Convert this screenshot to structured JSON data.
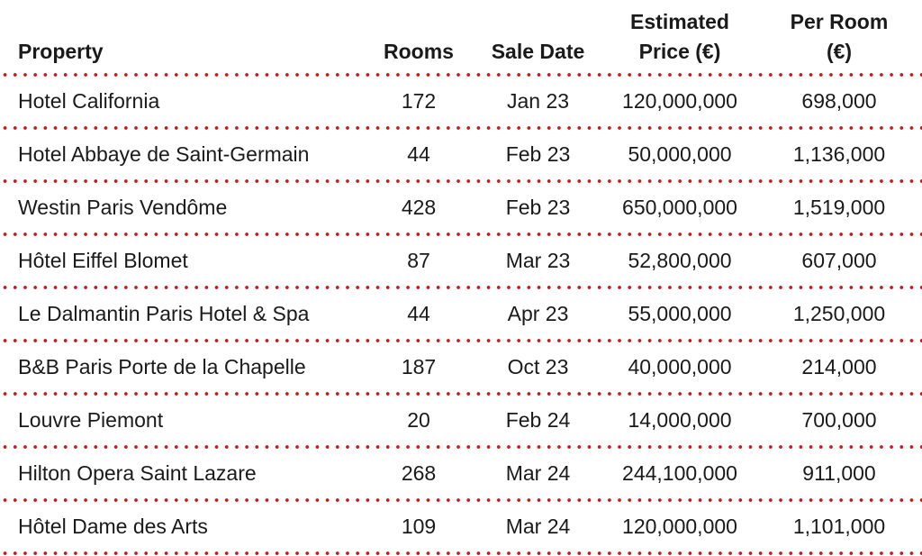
{
  "table": {
    "headers": [
      {
        "line1": "",
        "line2": "Property"
      },
      {
        "line1": "",
        "line2": "Rooms"
      },
      {
        "line1": "",
        "line2": "Sale Date"
      },
      {
        "line1": "Estimated",
        "line2": "Price (€)"
      },
      {
        "line1": "Per Room",
        "line2": "(€)"
      }
    ],
    "rows": [
      {
        "property": "Hotel California",
        "rooms": "172",
        "sale_date": "Jan 23",
        "price": "120,000,000",
        "per_room": "698,000"
      },
      {
        "property": "Hotel Abbaye de Saint-Germain",
        "rooms": "44",
        "sale_date": "Feb 23",
        "price": "50,000,000",
        "per_room": "1,136,000"
      },
      {
        "property": "Westin Paris Vendôme",
        "rooms": "428",
        "sale_date": "Feb 23",
        "price": "650,000,000",
        "per_room": "1,519,000"
      },
      {
        "property": "Hôtel Eiffel Blomet",
        "rooms": "87",
        "sale_date": "Mar 23",
        "price": "52,800,000",
        "per_room": "607,000"
      },
      {
        "property": "Le Dalmantin Paris Hotel & Spa",
        "rooms": "44",
        "sale_date": "Apr 23",
        "price": "55,000,000",
        "per_room": "1,250,000"
      },
      {
        "property": "B&B Paris Porte de la Chapelle",
        "rooms": "187",
        "sale_date": "Oct 23",
        "price": "40,000,000",
        "per_room": "214,000"
      },
      {
        "property": "Louvre Piemont",
        "rooms": "20",
        "sale_date": "Feb 24",
        "price": "14,000,000",
        "per_room": "700,000"
      },
      {
        "property": "Hilton Opera Saint Lazare",
        "rooms": "268",
        "sale_date": "Mar 24",
        "price": "244,100,000",
        "per_room": "911,000"
      },
      {
        "property": "Hôtel Dame des Arts",
        "rooms": "109",
        "sale_date": "Mar 24",
        "price": "120,000,000",
        "per_room": "1,101,000"
      }
    ]
  },
  "colors": {
    "rule_dots": "#c41a1a",
    "text": "#1a1a1a",
    "background": "#ffffff"
  }
}
